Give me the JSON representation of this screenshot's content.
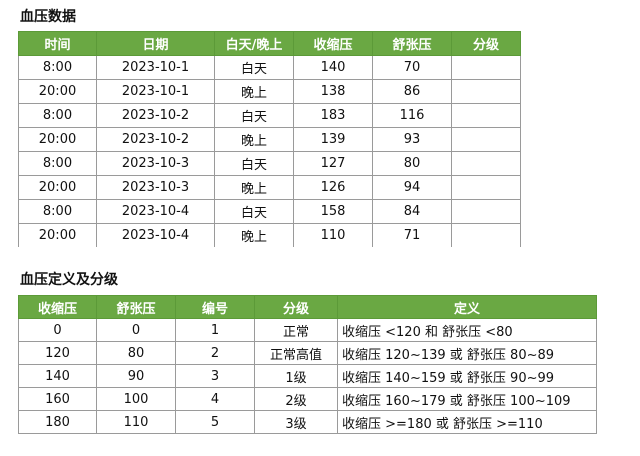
{
  "section1": {
    "title": "血压数据",
    "headers": [
      "时间",
      "日期",
      "白天/晚上",
      "收缩压",
      "舒张压",
      "分级"
    ],
    "rows": [
      [
        "8:00",
        "2023-10-1",
        "白天",
        "140",
        "70",
        ""
      ],
      [
        "20:00",
        "2023-10-1",
        "晚上",
        "138",
        "86",
        ""
      ],
      [
        "8:00",
        "2023-10-2",
        "白天",
        "183",
        "116",
        ""
      ],
      [
        "20:00",
        "2023-10-2",
        "晚上",
        "139",
        "93",
        ""
      ],
      [
        "8:00",
        "2023-10-3",
        "白天",
        "127",
        "80",
        ""
      ],
      [
        "20:00",
        "2023-10-3",
        "晚上",
        "126",
        "94",
        ""
      ],
      [
        "8:00",
        "2023-10-4",
        "白天",
        "158",
        "84",
        ""
      ],
      [
        "20:00",
        "2023-10-4",
        "晚上",
        "110",
        "71",
        ""
      ]
    ]
  },
  "section2": {
    "title": "血压定义及分级",
    "headers": [
      "收缩压",
      "舒张压",
      "编号",
      "分级",
      "定义"
    ],
    "rows": [
      [
        "0",
        "0",
        "1",
        "正常",
        "收缩压 <120 和 舒张压 <80"
      ],
      [
        "120",
        "80",
        "2",
        "正常高值",
        "收缩压 120~139 或 舒张压 80~89"
      ],
      [
        "140",
        "90",
        "3",
        "1级",
        "收缩压 140~159 或 舒张压 90~99"
      ],
      [
        "160",
        "100",
        "4",
        "2级",
        "收缩压 160~179 或 舒张压 100~109"
      ],
      [
        "180",
        "110",
        "5",
        "3级",
        "收缩压 >=180 或 舒张压 >=110"
      ]
    ]
  },
  "colors": {
    "header_bg": "#6aa843",
    "header_text": "#ffffff",
    "grid": "#9a9a9a"
  }
}
